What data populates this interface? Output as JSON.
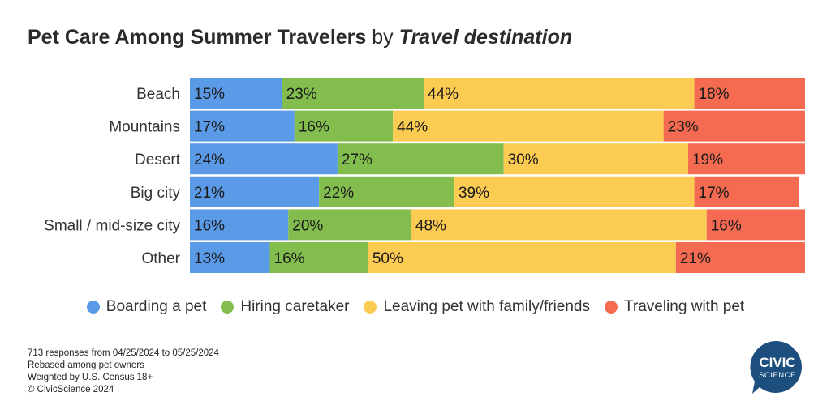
{
  "header": {
    "title_main": "Pet Care Among Summer Travelers",
    "title_by": "by",
    "title_dimension": "Travel destination"
  },
  "chart_data": {
    "type": "bar",
    "orientation": "horizontal",
    "stacked": true,
    "normalized_percent": true,
    "categories": [
      "Beach",
      "Mountains",
      "Desert",
      "Big city",
      "Small / mid-size city",
      "Other"
    ],
    "series": [
      {
        "name": "Boarding a pet",
        "color": "#5b9ae6",
        "values": [
          15,
          17,
          24,
          21,
          16,
          13
        ]
      },
      {
        "name": "Hiring caretaker",
        "color": "#82bd4e",
        "values": [
          23,
          16,
          27,
          22,
          20,
          16
        ]
      },
      {
        "name": "Leaving pet with family/friends",
        "color": "#fccb52",
        "values": [
          44,
          44,
          30,
          39,
          48,
          50
        ]
      },
      {
        "name": "Traveling with pet",
        "color": "#f46b52",
        "values": [
          18,
          23,
          19,
          17,
          16,
          21
        ]
      }
    ],
    "value_suffix": "%",
    "xlim": [
      0,
      100
    ],
    "grid": false,
    "legend_position": "bottom-center"
  },
  "legend": {
    "items": [
      {
        "label": "Boarding a pet",
        "color": "#5b9ae6"
      },
      {
        "label": "Hiring caretaker",
        "color": "#82bd4e"
      },
      {
        "label": "Leaving pet with family/friends",
        "color": "#fccb52"
      },
      {
        "label": "Traveling with pet",
        "color": "#f46b52"
      }
    ]
  },
  "footnotes": {
    "responses": "713 responses from 04/25/2024 to 05/25/2024",
    "rebased": "Rebased among pet owners",
    "weighted": "Weighted by U.S. Census 18+",
    "copyright": "© CivicScience 2024"
  },
  "logo": {
    "line1": "CIVIC",
    "line2": "SCIENCE",
    "color": "#1c4e7e"
  }
}
